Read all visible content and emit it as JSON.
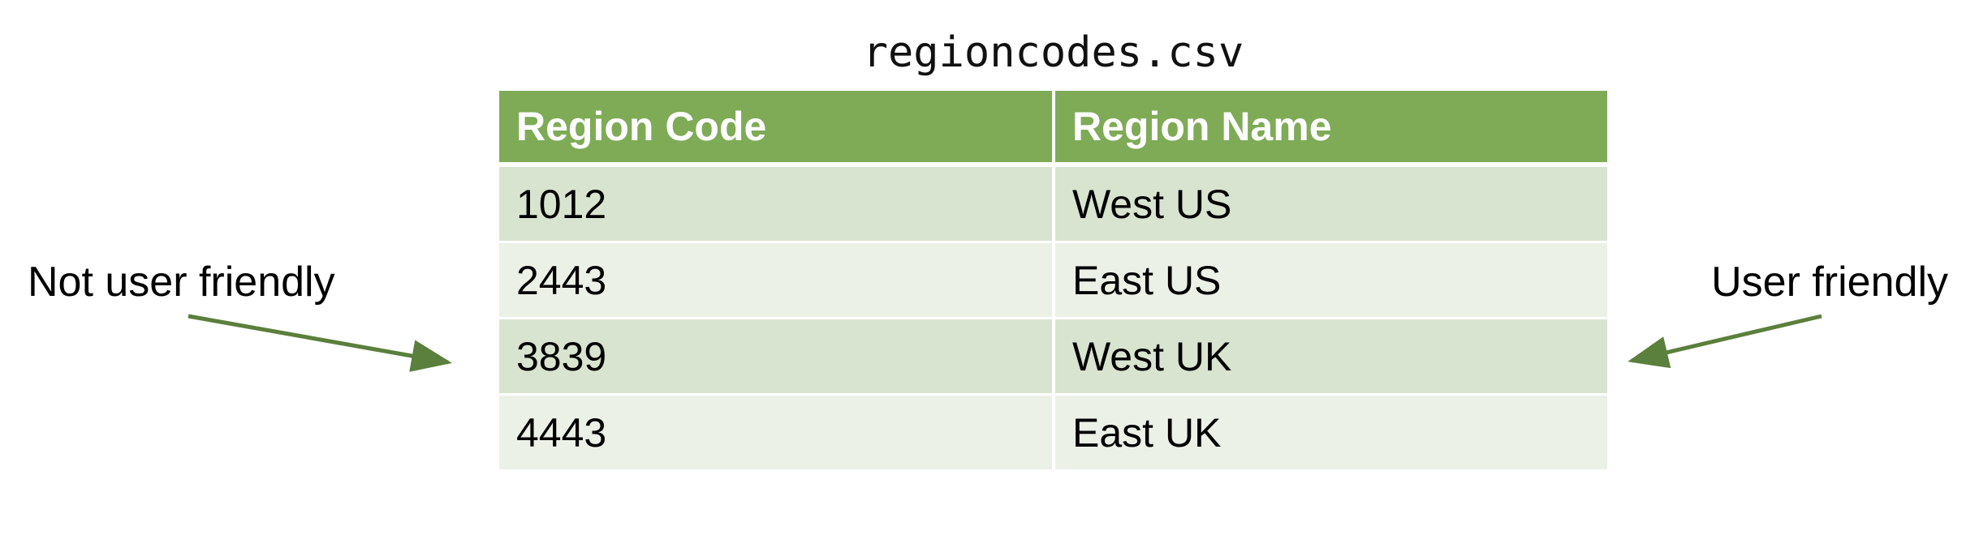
{
  "title": "regioncodes.csv",
  "table": {
    "headers": [
      "Region Code",
      "Region Name"
    ],
    "rows": [
      [
        "1012",
        "West US"
      ],
      [
        "2443",
        "East US"
      ],
      [
        "3839",
        "West UK"
      ],
      [
        "4443",
        "East UK"
      ]
    ]
  },
  "annotations": {
    "left": "Not user friendly",
    "right": "User friendly"
  },
  "colors": {
    "header": "#7fab57",
    "row_dark": "#d8e4cf",
    "row_light": "#ebf1e7",
    "arrow": "#5b7f3c"
  }
}
